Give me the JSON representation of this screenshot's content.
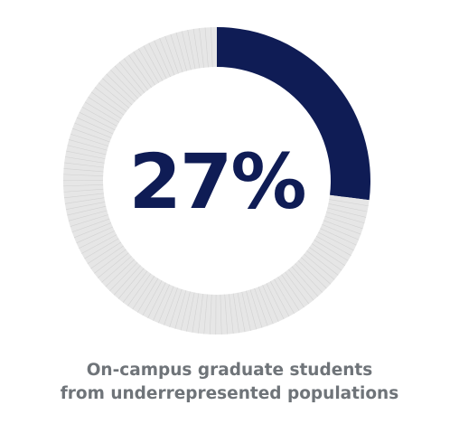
{
  "chart_data": {
    "type": "pie",
    "style": "donut",
    "title": "",
    "slices": [
      {
        "label": "",
        "value": 27,
        "color": "#0f1c55"
      },
      {
        "label": "",
        "value": 73,
        "color": "#e6e6e6"
      }
    ],
    "center_text": "27%",
    "caption_lines": [
      "On-campus graduate students",
      "from underrepresented populations"
    ]
  },
  "colors": {
    "accent": "#0f1c55",
    "track": "#e6e6e6",
    "track_line": "#d2d2d2",
    "caption": "#6f7479"
  }
}
